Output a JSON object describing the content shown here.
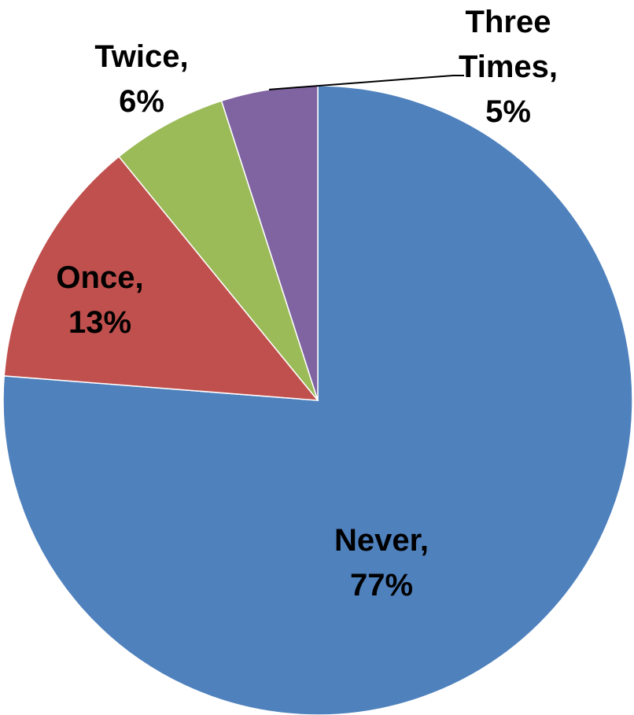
{
  "chart_data": {
    "type": "pie",
    "title": "",
    "slices": [
      {
        "name": "Never",
        "value": 77,
        "label": "77%",
        "color": "#4F81BD"
      },
      {
        "name": "Once",
        "value": 13,
        "label": "13%",
        "color": "#C0504D"
      },
      {
        "name": "Twice",
        "value": 6,
        "label": "6%",
        "color": "#9BBB59"
      },
      {
        "name": "Three Times",
        "value": 5,
        "label": "5%",
        "color": "#8064A2"
      }
    ],
    "start_angle_deg": 0,
    "direction": "clockwise",
    "legend": "none",
    "data_labels": "category-and-percent"
  }
}
